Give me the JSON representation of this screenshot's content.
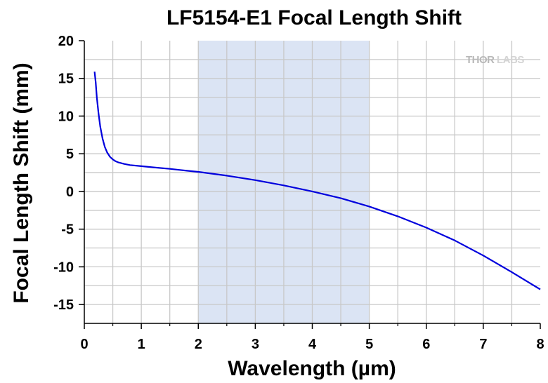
{
  "chart_data": {
    "type": "line",
    "title": "LF5154-E1 Focal Length Shift",
    "xlabel": "Wavelength (µm)",
    "ylabel": "Focal Length Shift (mm)",
    "xlim": [
      0,
      8
    ],
    "ylim": [
      -17.5,
      20
    ],
    "x_ticks": [
      0,
      1,
      2,
      3,
      4,
      5,
      6,
      7,
      8
    ],
    "y_ticks": [
      20,
      15,
      10,
      5,
      0,
      -5,
      -10,
      -15
    ],
    "grid": true,
    "highlight_band": {
      "x_start": 2,
      "x_end": 5,
      "color": "#dbe4f4"
    },
    "series": [
      {
        "color": "#0000dd",
        "x": [
          0.18,
          0.2,
          0.22,
          0.25,
          0.28,
          0.32,
          0.36,
          0.4,
          0.45,
          0.5,
          0.55,
          0.6,
          0.7,
          0.8,
          1.0,
          1.2,
          1.5,
          1.8,
          2.0,
          2.5,
          3.0,
          3.5,
          4.0,
          4.5,
          5.0,
          5.5,
          6.0,
          6.5,
          7.0,
          7.5,
          8.0
        ],
        "y": [
          15.9,
          14.5,
          12.5,
          10.3,
          8.6,
          7.0,
          5.9,
          5.2,
          4.6,
          4.25,
          4.0,
          3.85,
          3.65,
          3.5,
          3.35,
          3.2,
          3.0,
          2.75,
          2.6,
          2.1,
          1.5,
          0.8,
          0.0,
          -0.9,
          -2.0,
          -3.3,
          -4.8,
          -6.5,
          -8.5,
          -10.7,
          -13.0
        ]
      }
    ]
  },
  "watermark": {
    "left": "THOR",
    "right": "LABS"
  }
}
